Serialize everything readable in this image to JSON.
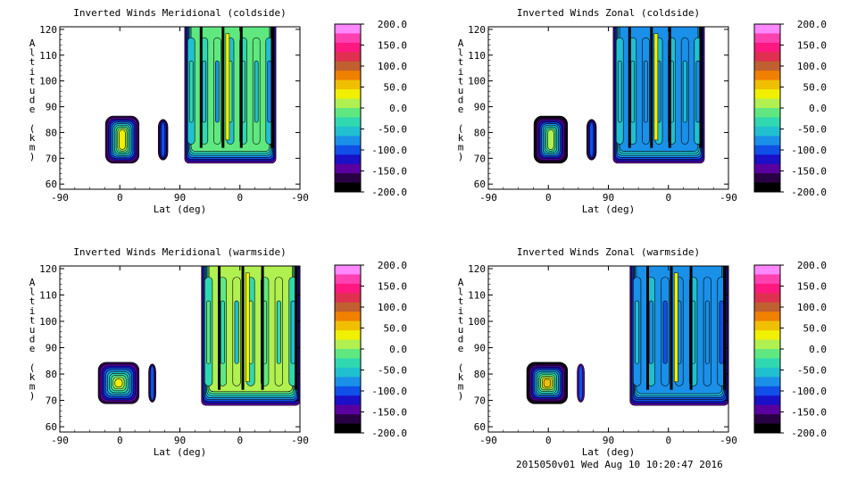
{
  "footer": "2015050v01 Wed Aug 10 10:20:47 2016",
  "chart_data": [
    {
      "type": "contour",
      "title": "Inverted Winds Meridional (coldside)",
      "xlabel": "Lat (deg)",
      "ylabel": "Altitude (km)",
      "x_ticks": [
        "-90",
        "0",
        "90",
        "0",
        "-90"
      ],
      "y_ticks": [
        60,
        70,
        80,
        90,
        100,
        110,
        120
      ],
      "ylim": [
        58,
        121
      ],
      "colorbar_ticks": [
        "200.0",
        "150.0",
        "100.0",
        "50.0",
        "0.0",
        "-50.0",
        "-100.0",
        "-150.0",
        "-200.0"
      ],
      "colorbar_range": [
        -200,
        200
      ],
      "colors": [
        "#000000",
        "#2a0044",
        "#5a00a0",
        "#1a10c8",
        "#1050e8",
        "#1a90e8",
        "#20c0d0",
        "#30d8b0",
        "#60e880",
        "#b0f050",
        "#f0f000",
        "#f0c000",
        "#f08000",
        "#c06030",
        "#e03050",
        "#ff1880",
        "#ff40b0",
        "#ff88ff"
      ],
      "regions": [
        {
          "lat": [
            -10,
            25
          ],
          "alt": [
            79,
            109
          ],
          "values": [
            -10,
            50
          ]
        },
        {
          "lat": [
            60,
            65
          ],
          "alt": [
            82,
            107
          ],
          "values": [
            -130,
            -100
          ]
        },
        {
          "lat": [
            -90,
            45
          ],
          "alt": [
            78,
            121
          ],
          "values": [
            -110,
            20
          ]
        }
      ]
    },
    {
      "type": "contour",
      "title": "Inverted Winds Zonal (coldside)",
      "xlabel": "Lat (deg)",
      "ylabel": "Altitude (km)",
      "x_ticks": [
        "-90",
        "0",
        "90",
        "0",
        "-90"
      ],
      "y_ticks": [
        60,
        70,
        80,
        90,
        100,
        110,
        120
      ],
      "ylim": [
        58,
        121
      ],
      "colorbar_ticks": [
        "200.0",
        "150.0",
        "100.0",
        "50.0",
        "0.0",
        "-50.0",
        "-100.0",
        "-150.0",
        "-200.0"
      ],
      "colorbar_range": [
        -200,
        200
      ],
      "colors": [
        "#000000",
        "#2a0044",
        "#5a00a0",
        "#1a10c8",
        "#1050e8",
        "#1a90e8",
        "#20c0d0",
        "#30d8b0",
        "#60e880",
        "#b0f050",
        "#f0f000",
        "#f0c000",
        "#f08000",
        "#c06030",
        "#e03050",
        "#ff1880",
        "#ff40b0",
        "#ff88ff"
      ],
      "regions": [
        {
          "lat": [
            -10,
            25
          ],
          "alt": [
            79,
            109
          ],
          "values": [
            -60,
            40
          ]
        },
        {
          "lat": [
            60,
            65
          ],
          "alt": [
            82,
            107
          ],
          "values": [
            -130,
            -100
          ]
        },
        {
          "lat": [
            -90,
            45
          ],
          "alt": [
            78,
            121
          ],
          "values": [
            -130,
            10
          ]
        }
      ]
    },
    {
      "type": "contour",
      "title": "Inverted Winds Meridional (warmside)",
      "xlabel": "Lat (deg)",
      "ylabel": "Altitude (km)",
      "x_ticks": [
        "-90",
        "0",
        "90",
        "0",
        "-90"
      ],
      "y_ticks": [
        60,
        70,
        80,
        90,
        100,
        110,
        120
      ],
      "ylim": [
        58,
        121
      ],
      "colorbar_ticks": [
        "200.0",
        "150.0",
        "100.0",
        "50.0",
        "0.0",
        "-50.0",
        "-100.0",
        "-150.0",
        "-200.0"
      ],
      "colorbar_range": [
        -200,
        200
      ],
      "colors": [
        "#000000",
        "#2a0044",
        "#5a00a0",
        "#1a10c8",
        "#1050e8",
        "#1a90e8",
        "#20c0d0",
        "#30d8b0",
        "#60e880",
        "#b0f050",
        "#f0f000",
        "#f0c000",
        "#f08000",
        "#c06030",
        "#e03050",
        "#ff1880",
        "#ff40b0",
        "#ff88ff"
      ],
      "regions": [
        {
          "lat": [
            -10,
            25
          ],
          "alt": [
            79,
            109
          ],
          "values": [
            -20,
            50
          ]
        },
        {
          "lat": [
            55,
            60
          ],
          "alt": [
            82,
            107
          ],
          "values": [
            -130,
            -100
          ]
        },
        {
          "lat": [
            -90,
            50
          ],
          "alt": [
            77,
            121
          ],
          "values": [
            -110,
            60
          ]
        }
      ]
    },
    {
      "type": "contour",
      "title": "Inverted Winds Zonal (warmside)",
      "xlabel": "Lat (deg)",
      "ylabel": "Altitude (km)",
      "x_ticks": [
        "-90",
        "0",
        "90",
        "0",
        "-90"
      ],
      "y_ticks": [
        60,
        70,
        80,
        90,
        100,
        110,
        120
      ],
      "ylim": [
        58,
        121
      ],
      "colorbar_ticks": [
        "200.0",
        "150.0",
        "100.0",
        "50.0",
        "0.0",
        "-50.0",
        "-100.0",
        "-150.0",
        "-200.0"
      ],
      "colorbar_range": [
        -200,
        200
      ],
      "colors": [
        "#000000",
        "#2a0044",
        "#5a00a0",
        "#1a10c8",
        "#1050e8",
        "#1a90e8",
        "#20c0d0",
        "#30d8b0",
        "#60e880",
        "#b0f050",
        "#f0f000",
        "#f0c000",
        "#f08000",
        "#c06030",
        "#e03050",
        "#ff1880",
        "#ff40b0",
        "#ff88ff"
      ],
      "regions": [
        {
          "lat": [
            -10,
            25
          ],
          "alt": [
            79,
            109
          ],
          "values": [
            -40,
            80
          ]
        },
        {
          "lat": [
            55,
            60
          ],
          "alt": [
            82,
            107
          ],
          "values": [
            -130,
            -100
          ]
        },
        {
          "lat": [
            -90,
            50
          ],
          "alt": [
            77,
            121
          ],
          "values": [
            -140,
            20
          ]
        }
      ]
    }
  ]
}
